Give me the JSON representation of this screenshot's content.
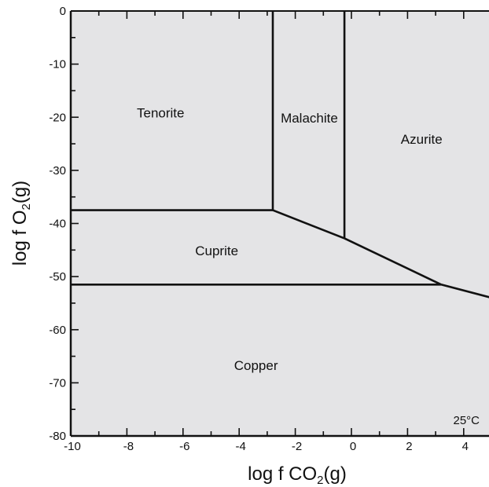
{
  "chart_data": {
    "type": "phase-diagram",
    "xlabel_main": "log f CO",
    "xlabel_sub": "2",
    "xlabel_tail": "(g)",
    "ylabel_main": "log f O",
    "ylabel_sub": "2",
    "ylabel_tail": "(g)",
    "xlim": [
      -10,
      5
    ],
    "ylim": [
      -80,
      0
    ],
    "x_ticks": [
      -10,
      -8,
      -6,
      -4,
      -2,
      0,
      2,
      4
    ],
    "x_tick_labels": [
      "-10",
      "-8",
      "-6",
      "-4",
      "-2",
      "0",
      "2",
      "4"
    ],
    "y_ticks": [
      0,
      -10,
      -20,
      -30,
      -40,
      -50,
      -60,
      -70,
      -80
    ],
    "y_tick_labels": [
      "0",
      "-10",
      "-20",
      "-30",
      "-40",
      "-50",
      "-60",
      "-70",
      "-80"
    ],
    "boundaries": [
      {
        "name": "tenorite-cuprite",
        "points": [
          [
            -10,
            -37.5
          ],
          [
            -2.8,
            -37.5
          ]
        ]
      },
      {
        "name": "tenorite-malachite",
        "points": [
          [
            -2.8,
            0
          ],
          [
            -2.8,
            -37.5
          ]
        ]
      },
      {
        "name": "malachite-azurite",
        "points": [
          [
            -0.25,
            0
          ],
          [
            -0.25,
            -42.8
          ]
        ]
      },
      {
        "name": "malachite-cuprite",
        "points": [
          [
            -2.8,
            -37.5
          ],
          [
            -0.25,
            -42.8
          ]
        ]
      },
      {
        "name": "azurite-cuprite",
        "points": [
          [
            -0.25,
            -42.8
          ],
          [
            3.2,
            -51.5
          ]
        ]
      },
      {
        "name": "cuprite-copper",
        "points": [
          [
            -10,
            -51.5
          ],
          [
            3.2,
            -51.5
          ]
        ]
      },
      {
        "name": "azurite-copper",
        "points": [
          [
            3.2,
            -51.5
          ],
          [
            5,
            -54
          ]
        ]
      }
    ],
    "regions": [
      {
        "label": "Tenorite",
        "x": -6.8,
        "y": -20
      },
      {
        "label": "Malachite",
        "x": -1.5,
        "y": -21
      },
      {
        "label": "Azurite",
        "x": 2.5,
        "y": -25
      },
      {
        "label": "Cuprite",
        "x": -4.8,
        "y": -46
      },
      {
        "label": "Copper",
        "x": -3.4,
        "y": -67.6
      }
    ],
    "annotation": "25°C"
  }
}
